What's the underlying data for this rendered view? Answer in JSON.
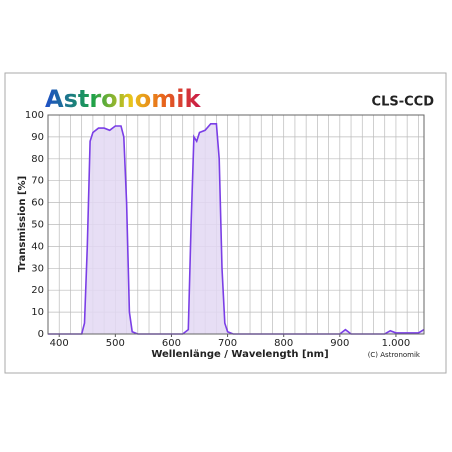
{
  "chart_data": {
    "type": "line",
    "title": "Astronomik",
    "subtitle": "CLS-CCD",
    "x_label": "Wellenlänge / Wavelength [nm]",
    "y_label": "Transmission [%]",
    "annotation": "(C) Astronomik",
    "x": [
      380,
      440,
      445,
      450,
      455,
      460,
      470,
      480,
      490,
      500,
      510,
      515,
      520,
      525,
      530,
      540,
      620,
      630,
      635,
      640,
      645,
      650,
      660,
      670,
      680,
      685,
      690,
      695,
      700,
      710,
      800,
      900,
      910,
      915,
      920,
      980,
      990,
      1000,
      1040,
      1050
    ],
    "series": [
      {
        "name": "CLS-CCD",
        "color": "#7a3ee6",
        "values": [
          0,
          0,
          5,
          40,
          88,
          92,
          94,
          94,
          93,
          95,
          95,
          90,
          60,
          10,
          1,
          0,
          0,
          2,
          50,
          90,
          88,
          92,
          93,
          96,
          96,
          80,
          30,
          5,
          1,
          0,
          0,
          0,
          2,
          1,
          0,
          0,
          1.5,
          0.5,
          0.5,
          2
        ]
      }
    ],
    "fill_color": "#e3d8f3",
    "xlim": [
      380,
      1050
    ],
    "ylim": [
      0,
      100
    ],
    "xticks": [
      400,
      500,
      600,
      700,
      800,
      900,
      {
        "value": 1000,
        "label": "1.000"
      }
    ],
    "yticks": [
      0,
      10,
      20,
      30,
      40,
      50,
      60,
      70,
      80,
      90,
      100
    ],
    "xgrid": [
      400,
      420,
      440,
      460,
      480,
      500,
      520,
      540,
      560,
      580,
      600,
      620,
      640,
      660,
      680,
      700,
      720,
      740,
      760,
      780,
      800,
      820,
      840,
      860,
      880,
      900,
      920,
      940,
      960,
      980,
      1000,
      1020,
      1040
    ],
    "grid": true
  }
}
